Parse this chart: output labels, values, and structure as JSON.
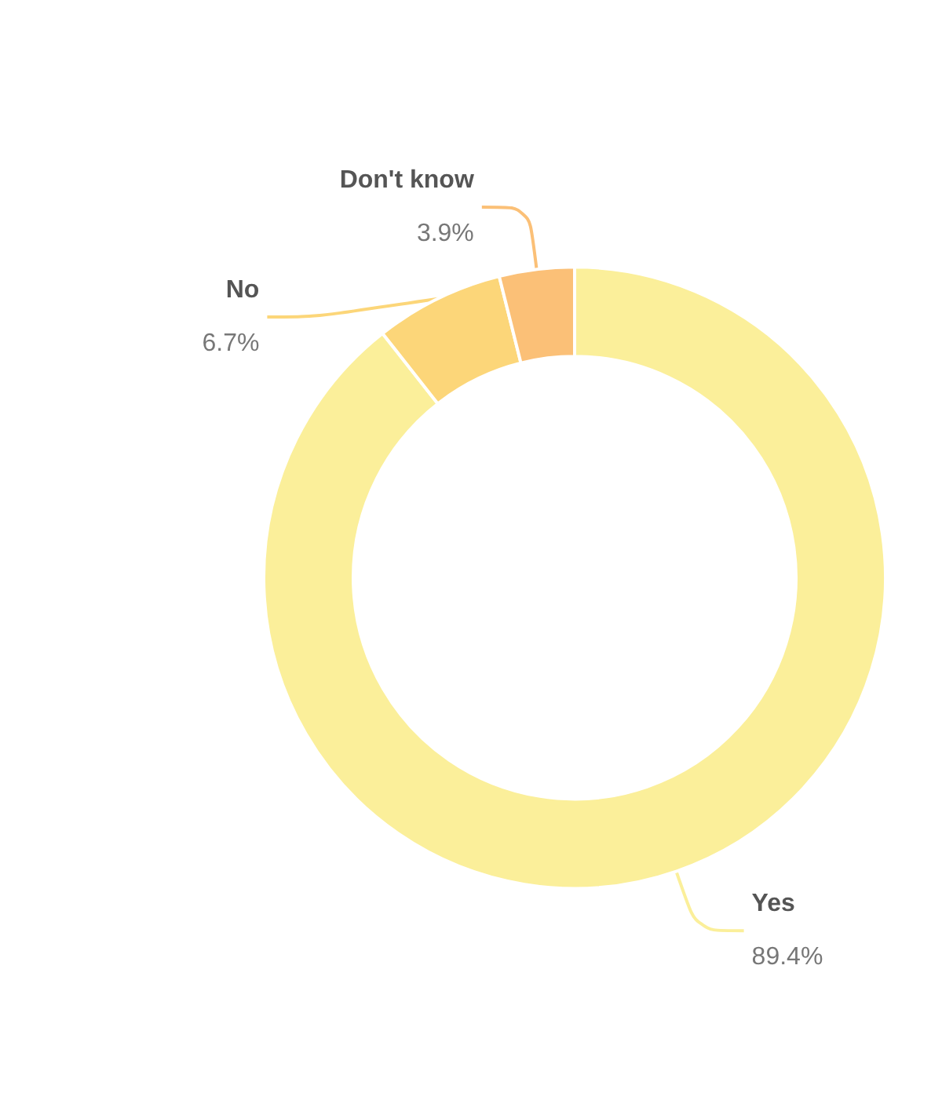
{
  "chart_data": {
    "type": "donut",
    "categories": [
      "Yes",
      "No",
      "Don't know"
    ],
    "values": [
      89.4,
      6.7,
      3.9
    ],
    "value_labels": [
      "89.4%",
      "6.7%",
      "3.9%"
    ],
    "colors": [
      "#fbef9a",
      "#fcd679",
      "#fbc077"
    ],
    "legend": false
  }
}
